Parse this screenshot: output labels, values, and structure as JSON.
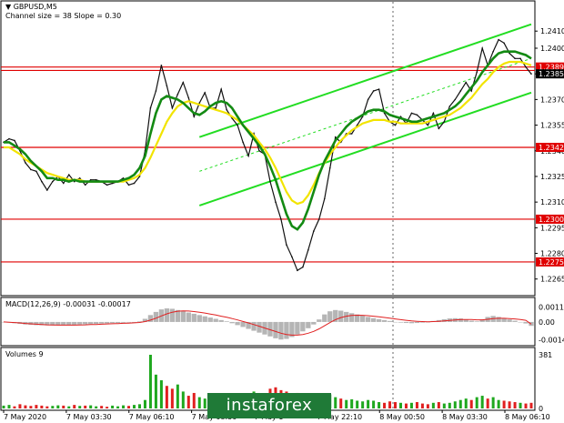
{
  "chart_data": {
    "type": "line",
    "symbol_header": "GBPUSD,M5",
    "channel_info": "Channel size = 38 Slope = 0.30",
    "price_axis": {
      "ticks": [
        "1.2410",
        "1.2400",
        "1.2385",
        "1.2370",
        "1.2355",
        "1.2340",
        "1.2325",
        "1.2310",
        "1.2295",
        "1.2280",
        "1.2265"
      ],
      "ylim": [
        1.2259,
        1.2425
      ]
    },
    "price_labels": [
      {
        "text": "1.2389",
        "value": 1.2389,
        "color": "#e00000"
      },
      {
        "text": "1.2385",
        "value": 1.2385,
        "color": "#000000"
      },
      {
        "text": "1.2342",
        "value": 1.2342,
        "color": "#e00000"
      },
      {
        "text": "1.2300",
        "value": 1.23,
        "color": "#e00000"
      },
      {
        "text": "1.2275",
        "value": 1.2275,
        "color": "#e00000"
      }
    ],
    "horizontal_levels": [
      1.2389,
      1.2387,
      1.2342,
      1.23,
      1.2275
    ],
    "time_labels": [
      "7 May 2020",
      "7 May 03:30",
      "7 May 06:10",
      "7 May 08:50",
      "7 May 1",
      "7 May 22:10",
      "8 May 00:50",
      "8 May 03:30",
      "8 May 06:10"
    ],
    "price_series": [
      1.2345,
      1.2347,
      1.2346,
      1.234,
      1.2333,
      1.2329,
      1.2328,
      1.2322,
      1.2317,
      1.2322,
      1.2325,
      1.2321,
      1.2326,
      1.2322,
      1.2324,
      1.232,
      1.2323,
      1.2323,
      1.2322,
      1.232,
      1.2321,
      1.2322,
      1.2324,
      1.232,
      1.2321,
      1.2325,
      1.234,
      1.2365,
      1.2375,
      1.239,
      1.2378,
      1.2365,
      1.2373,
      1.238,
      1.2371,
      1.236,
      1.2368,
      1.2374,
      1.2365,
      1.2365,
      1.2376,
      1.2364,
      1.2359,
      1.2355,
      1.2345,
      1.2337,
      1.235,
      1.234,
      1.2338,
      1.2322,
      1.231,
      1.23,
      1.2285,
      1.2278,
      1.227,
      1.2272,
      1.2282,
      1.2293,
      1.23,
      1.2312,
      1.233,
      1.2348,
      1.2345,
      1.235,
      1.235,
      1.2355,
      1.236,
      1.237,
      1.2375,
      1.2376,
      1.2362,
      1.2357,
      1.2355,
      1.236,
      1.2356,
      1.2362,
      1.2361,
      1.2358,
      1.2355,
      1.2362,
      1.2353,
      1.2357,
      1.2366,
      1.237,
      1.2375,
      1.238,
      1.2375,
      1.2386,
      1.24,
      1.239,
      1.2398,
      1.2405,
      1.2403,
      1.2397,
      1.2394,
      1.2394,
      1.2389,
      1.2385
    ],
    "ma_green": [
      1.2345,
      1.2345,
      1.2343,
      1.2341,
      1.2338,
      1.2334,
      1.2331,
      1.2328,
      1.2324,
      1.2324,
      1.2323,
      1.2323,
      1.2322,
      1.2323,
      1.2322,
      1.2322,
      1.2322,
      1.2322,
      1.2322,
      1.2322,
      1.2322,
      1.2322,
      1.2323,
      1.2324,
      1.2326,
      1.233,
      1.2337,
      1.235,
      1.2362,
      1.237,
      1.2372,
      1.2371,
      1.237,
      1.2368,
      1.2365,
      1.2362,
      1.2361,
      1.2363,
      1.2366,
      1.2368,
      1.2369,
      1.2368,
      1.2365,
      1.236,
      1.2355,
      1.2351,
      1.2347,
      1.2343,
      1.2338,
      1.2331,
      1.2323,
      1.2313,
      1.2303,
      1.2296,
      1.2294,
      1.2298,
      1.2306,
      1.2316,
      1.2326,
      1.2334,
      1.234,
      1.2346,
      1.235,
      1.2354,
      1.2357,
      1.2359,
      1.2361,
      1.2363,
      1.2364,
      1.2364,
      1.2363,
      1.2361,
      1.236,
      1.2359,
      1.2358,
      1.2357,
      1.2357,
      1.2358,
      1.2359,
      1.236,
      1.2361,
      1.2362,
      1.2364,
      1.2366,
      1.2369,
      1.2373,
      1.2377,
      1.2381,
      1.2386,
      1.239,
      1.2394,
      1.2397,
      1.2398,
      1.2398,
      1.2398,
      1.2397,
      1.2396,
      1.2394
    ],
    "ma_yellow": [
      1.2342,
      1.2342,
      1.234,
      1.2338,
      1.2335,
      1.2333,
      1.2331,
      1.2329,
      1.2327,
      1.2326,
      1.2325,
      1.2324,
      1.2323,
      1.2323,
      1.2323,
      1.2322,
      1.2322,
      1.2322,
      1.2322,
      1.2322,
      1.2322,
      1.2322,
      1.2322,
      1.2323,
      1.2324,
      1.2326,
      1.233,
      1.2336,
      1.2343,
      1.235,
      1.2357,
      1.2362,
      1.2366,
      1.2368,
      1.2369,
      1.2368,
      1.2367,
      1.2366,
      1.2365,
      1.2364,
      1.2363,
      1.2362,
      1.236,
      1.2358,
      1.2355,
      1.2352,
      1.2349,
      1.2345,
      1.2341,
      1.2336,
      1.233,
      1.2323,
      1.2316,
      1.2311,
      1.2309,
      1.231,
      1.2314,
      1.232,
      1.2327,
      1.2333,
      1.2338,
      1.2342,
      1.2346,
      1.2349,
      1.2352,
      1.2354,
      1.2356,
      1.2357,
      1.2358,
      1.2358,
      1.2358,
      1.2357,
      1.2357,
      1.2356,
      1.2356,
      1.2356,
      1.2356,
      1.2356,
      1.2357,
      1.2358,
      1.2359,
      1.236,
      1.2361,
      1.2363,
      1.2365,
      1.2368,
      1.2371,
      1.2375,
      1.2379,
      1.2382,
      1.2386,
      1.2389,
      1.2391,
      1.2392,
      1.2392,
      1.2392,
      1.2391,
      1.239
    ],
    "channel": {
      "upper": [
        [
          36,
          1.2348
        ],
        [
          97,
          1.2414
        ]
      ],
      "lower": [
        [
          36,
          1.2308
        ],
        [
          97,
          1.2374
        ]
      ]
    },
    "macd": {
      "label": "MACD(12,26,9) -0.00031 -0.00017",
      "ticks": [
        "0.001185",
        "0.00",
        "-0.001435"
      ],
      "ylim": [
        -0.0016,
        0.0013
      ],
      "histogram": [
        0.0,
        -5e-05,
        -0.0001,
        -0.00015,
        -0.0002,
        -0.00023,
        -0.00025,
        -0.00026,
        -0.00027,
        -0.00027,
        -0.00026,
        -0.00025,
        -0.00024,
        -0.00023,
        -0.00021,
        -0.00019,
        -0.00017,
        -0.00015,
        -0.00013,
        -0.00011,
        -9e-05,
        -8e-05,
        -6e-05,
        -4e-05,
        -2e-05,
        5e-05,
        0.00025,
        0.00055,
        0.0008,
        0.001,
        0.00108,
        0.00105,
        0.00095,
        0.00085,
        0.00075,
        0.00065,
        0.00055,
        0.00045,
        0.00035,
        0.00025,
        0.00015,
        5e-05,
        -0.0001,
        -0.00025,
        -0.0004,
        -0.00055,
        -0.0007,
        -0.00085,
        -0.001,
        -0.00115,
        -0.0013,
        -0.0014,
        -0.00135,
        -0.0012,
        -0.001,
        -0.00075,
        -0.0005,
        -0.0002,
        0.0002,
        0.0006,
        0.00085,
        0.00095,
        0.0009,
        0.0008,
        0.0007,
        0.0006,
        0.0005,
        0.0004,
        0.0003,
        0.00022,
        0.00015,
        8e-05,
        0.0,
        -5e-05,
        -8e-05,
        -0.0001,
        -8e-05,
        -5e-05,
        0.0,
        8e-05,
        0.00015,
        0.00022,
        0.00028,
        0.0003,
        0.00028,
        0.0002,
        0.0001,
        5e-05,
        0.0002,
        0.0004,
        0.00048,
        0.0004,
        0.0003,
        0.0002,
        0.0001,
        0.0,
        -0.00012,
        -0.00031
      ],
      "signal": [
        0.0,
        -2e-05,
        -5e-05,
        -8e-05,
        -0.00012,
        -0.00015,
        -0.00018,
        -0.00021,
        -0.00023,
        -0.00024,
        -0.00025,
        -0.00025,
        -0.00025,
        -0.00025,
        -0.00024,
        -0.00023,
        -0.00021,
        -0.0002,
        -0.00018,
        -0.00016,
        -0.00014,
        -0.00013,
        -0.00011,
        -9e-05,
        -7e-05,
        -4e-05,
        3e-05,
        0.00015,
        0.0003,
        0.00048,
        0.00065,
        0.00078,
        0.00086,
        0.00088,
        0.00087,
        0.00083,
        0.00078,
        0.00071,
        0.00063,
        0.00055,
        0.00046,
        0.00037,
        0.00027,
        0.00016,
        4e-05,
        -8e-05,
        -0.00021,
        -0.00034,
        -0.00048,
        -0.00062,
        -0.00076,
        -0.0009,
        -0.001,
        -0.00105,
        -0.00105,
        -0.001,
        -0.0009,
        -0.00075,
        -0.00055,
        -0.0003,
        -5e-05,
        0.00018,
        0.00035,
        0.00046,
        0.00052,
        0.00054,
        0.00053,
        0.0005,
        0.00046,
        0.00041,
        0.00036,
        0.0003,
        0.00024,
        0.00018,
        0.00013,
        8e-05,
        5e-05,
        3e-05,
        2e-05,
        3e-05,
        5e-05,
        8e-05,
        0.00012,
        0.00016,
        0.00019,
        0.0002,
        0.00019,
        0.00017,
        0.00017,
        0.00021,
        0.00026,
        0.00029,
        0.00029,
        0.00027,
        0.00024,
        0.00019,
        0.00013,
        -0.00017
      ]
    },
    "volumes": {
      "label": "Volumes 9",
      "ticks": [
        "381",
        "0"
      ],
      "ylim": [
        0,
        381
      ],
      "values": [
        20,
        25,
        15,
        30,
        22,
        18,
        25,
        20,
        15,
        18,
        22,
        20,
        15,
        25,
        18,
        20,
        22,
        15,
        18,
        12,
        20,
        15,
        22,
        18,
        25,
        30,
        60,
        381,
        240,
        200,
        160,
        140,
        170,
        120,
        90,
        110,
        80,
        70,
        90,
        60,
        50,
        70,
        60,
        55,
        80,
        100,
        120,
        90,
        80,
        140,
        150,
        130,
        120,
        100,
        110,
        90,
        80,
        70,
        60,
        90,
        100,
        80,
        70,
        60,
        65,
        55,
        50,
        60,
        55,
        45,
        40,
        50,
        45,
        40,
        35,
        40,
        45,
        35,
        30,
        40,
        45,
        35,
        40,
        50,
        60,
        70,
        60,
        80,
        90,
        70,
        80,
        60,
        55,
        50,
        45,
        40,
        35,
        40
      ]
    }
  },
  "watermark": "instaforex"
}
